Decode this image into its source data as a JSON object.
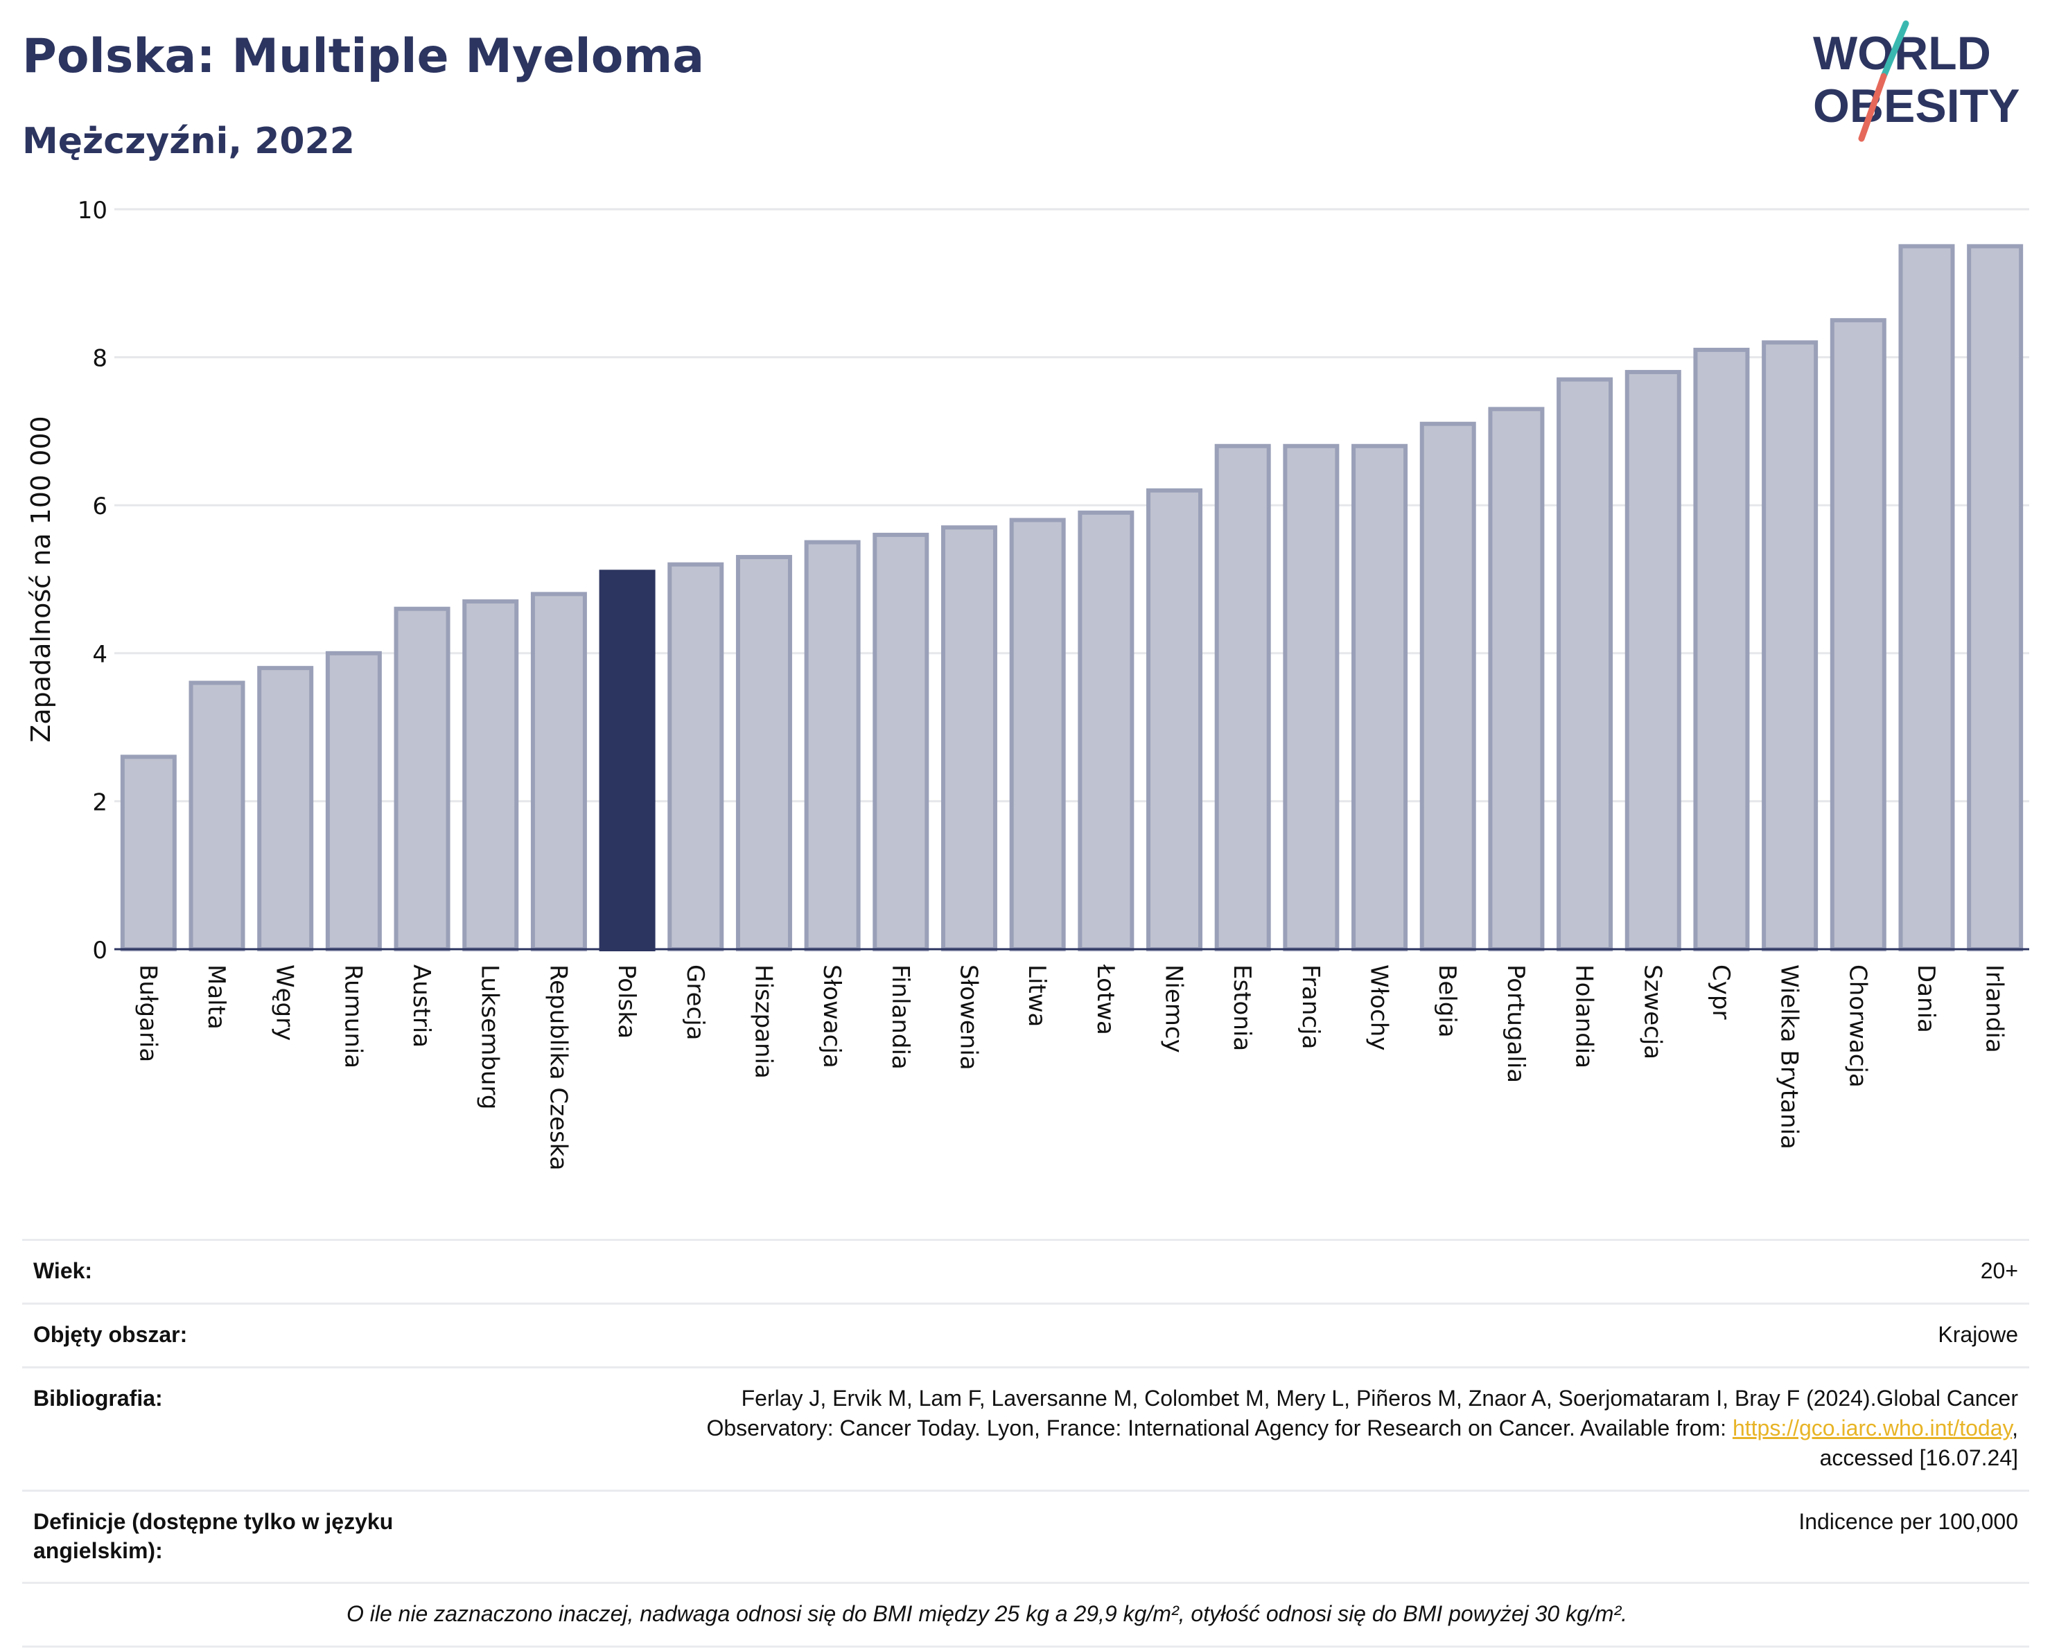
{
  "header": {
    "title": "Polska: Multiple Myeloma",
    "subtitle": "Mężczyźni, 2022",
    "logo_line1": "WORLD",
    "logo_line2": "OBESITY"
  },
  "colors": {
    "navy": "#2c3560",
    "bar_muted": "#bfc2d0",
    "bar_muted_border": "#9aa0b8",
    "accent_teal": "#3ab8b0",
    "accent_red": "#e5685a",
    "link": "#e8b426"
  },
  "chart_data": {
    "type": "bar",
    "title": "Polska: Multiple Myeloma",
    "subtitle": "Mężczyźni, 2022",
    "ylabel": "Zapadalność na 100 000",
    "xlabel": "",
    "ylim": [
      0,
      10
    ],
    "yticks": [
      0,
      2,
      4,
      6,
      8,
      10
    ],
    "grid": true,
    "highlight": "Polska",
    "categories": [
      "Bułgaria",
      "Malta",
      "Węgry",
      "Rumunia",
      "Austria",
      "Luksemburg",
      "Republika Czeska",
      "Polska",
      "Grecja",
      "Hiszpania",
      "Słowacja",
      "Finlandia",
      "Słowenia",
      "Litwa",
      "Łotwa",
      "Niemcy",
      "Estonia",
      "Francja",
      "Włochy",
      "Belgia",
      "Portugalia",
      "Holandia",
      "Szwecja",
      "Cypr",
      "Wielka Brytania",
      "Chorwacja",
      "Dania",
      "Irlandia"
    ],
    "values": [
      2.6,
      3.6,
      3.8,
      4.0,
      4.6,
      4.7,
      4.8,
      5.1,
      5.2,
      5.3,
      5.5,
      5.6,
      5.7,
      5.8,
      5.9,
      6.2,
      6.8,
      6.8,
      6.8,
      7.1,
      7.3,
      7.7,
      7.8,
      8.1,
      8.2,
      8.5,
      9.5,
      9.5
    ]
  },
  "info": {
    "age_label": "Wiek:",
    "age_value": "20+",
    "coverage_label": "Objęty obszar:",
    "coverage_value": "Krajowe",
    "bib_label": "Bibliografia:",
    "bib_line1": "Ferlay J, Ervik M, Lam F, Laversanne M, Colombet M, Mery L, Piñeros M, Znaor A, Soerjomataram I, Bray F (2024).Global Cancer",
    "bib_line2": "Observatory: Cancer Today. Lyon, France: International Agency for Research on Cancer. Available from: ",
    "bib_link": "https://gco.iarc.who.int/today",
    "bib_line2_end": ",",
    "bib_line3": "accessed [16.07.24]",
    "def_label": "Definicje (dostępne tylko w języku angielskim):",
    "def_value": "Indicence per 100,000",
    "note": "O ile nie zaznaczono inaczej, nadwaga odnosi się do BMI między 25 kg a 29,9 kg/m², otyłość odnosi się do BMI powyżej 30 kg/m²."
  }
}
